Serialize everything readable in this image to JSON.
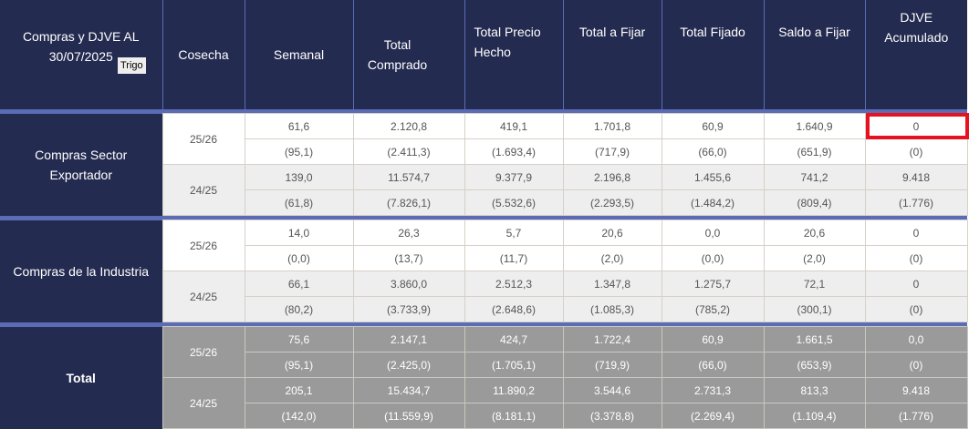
{
  "header": {
    "title": "Compras y DJVE AL 30/07/2025",
    "commodity_button": "Trigo",
    "columns": [
      "Cosecha",
      "Semanal",
      "Total Comprado",
      "Total Precio Hecho",
      "Total a Fijar",
      "Total Fijado",
      "Saldo a Fijar",
      "DJVE Acumulado"
    ]
  },
  "highlight_color": "#e8121e",
  "groups": [
    {
      "label": "Compras Sector Exportador",
      "rows": [
        {
          "cosecha": "25/26",
          "current": [
            "61,6",
            "2.120,8",
            "419,1",
            "1.701,8",
            "60,9",
            "1.640,9",
            "0"
          ],
          "previous": [
            "(95,1)",
            "(2.411,3)",
            "(1.693,4)",
            "(717,9)",
            "(66,0)",
            "(651,9)",
            "(0)"
          ]
        },
        {
          "cosecha": "24/25",
          "current": [
            "139,0",
            "11.574,7",
            "9.377,9",
            "2.196,8",
            "1.455,6",
            "741,2",
            "9.418"
          ],
          "previous": [
            "(61,8)",
            "(7.826,1)",
            "(5.532,6)",
            "(2.293,5)",
            "(1.484,2)",
            "(809,4)",
            "(1.776)"
          ]
        }
      ]
    },
    {
      "label": "Compras de la Industria",
      "rows": [
        {
          "cosecha": "25/26",
          "current": [
            "14,0",
            "26,3",
            "5,7",
            "20,6",
            "0,0",
            "20,6",
            "0"
          ],
          "previous": [
            "(0,0)",
            "(13,7)",
            "(11,7)",
            "(2,0)",
            "(0,0)",
            "(2,0)",
            "(0)"
          ]
        },
        {
          "cosecha": "24/25",
          "current": [
            "66,1",
            "3.860,0",
            "2.512,3",
            "1.347,8",
            "1.275,7",
            "72,1",
            "0"
          ],
          "previous": [
            "(80,2)",
            "(3.733,9)",
            "(2.648,6)",
            "(1.085,3)",
            "(785,2)",
            "(300,1)",
            "(0)"
          ]
        }
      ]
    },
    {
      "label": "Total",
      "rows": [
        {
          "cosecha": "25/26",
          "current": [
            "75,6",
            "2.147,1",
            "424,7",
            "1.722,4",
            "60,9",
            "1.661,5",
            "0,0"
          ],
          "previous": [
            "(95,1)",
            "(2.425,0)",
            "(1.705,1)",
            "(719,9)",
            "(66,0)",
            "(653,9)",
            "(0)"
          ]
        },
        {
          "cosecha": "24/25",
          "current": [
            "205,1",
            "15.434,7",
            "11.890,2",
            "3.544,6",
            "2.731,3",
            "813,3",
            "9.418"
          ],
          "previous": [
            "(142,0)",
            "(11.559,9)",
            "(8.181,1)",
            "(3.378,8)",
            "(2.269,4)",
            "(1.109,4)",
            "(1.776)"
          ]
        }
      ]
    }
  ]
}
